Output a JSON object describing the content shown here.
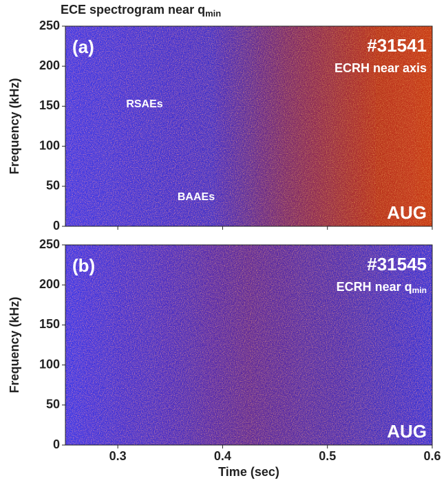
{
  "chart_data": [
    {
      "type": "spectrogram",
      "title": {
        "text": "ECE spectrogram near q",
        "subscript": "min"
      },
      "panel_label": "(a)",
      "shot": "#31541",
      "heating": {
        "text": "ECRH near axis"
      },
      "device": "AUG",
      "annotations": [
        "RSAEs",
        "BAAEs"
      ],
      "ylabel": "Frequency (kHz)",
      "ylim": [
        0,
        250
      ],
      "yticks": [
        0,
        50,
        100,
        150,
        200,
        250
      ],
      "xlim": [
        0.25,
        0.6
      ]
    },
    {
      "type": "spectrogram",
      "panel_label": "(b)",
      "shot": "#31545",
      "heating": {
        "text": "ECRH near q",
        "subscript": "min"
      },
      "device": "AUG",
      "ylabel": "Frequency (kHz)",
      "xlabel": "Time (sec)",
      "ylim": [
        0,
        250
      ],
      "yticks": [
        0,
        50,
        100,
        150,
        200,
        250
      ],
      "xlim": [
        0.25,
        0.6
      ],
      "xticks": [
        0.3,
        0.4,
        0.5,
        0.6
      ]
    }
  ]
}
